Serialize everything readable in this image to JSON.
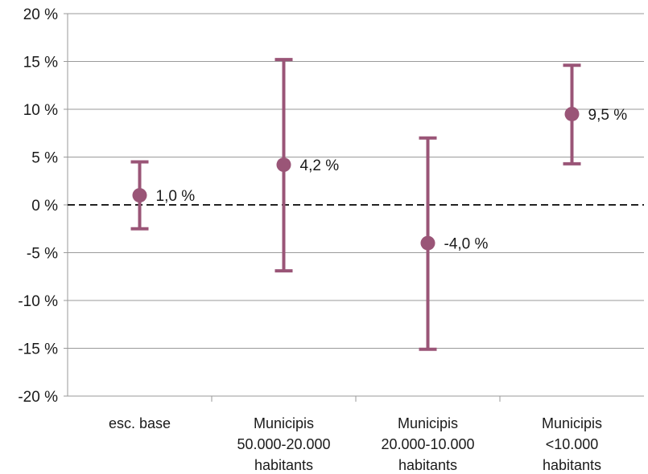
{
  "chart_data": {
    "type": "scatter",
    "ylim": [
      -20,
      20
    ],
    "y_ticks": [
      -20,
      -15,
      -10,
      -5,
      0,
      5,
      10,
      15,
      20
    ],
    "y_tick_labels": [
      "-20 %",
      "-15 %",
      "-10 %",
      "-5 %",
      "0 %",
      "5 %",
      "10 %",
      "15 %",
      "20 %"
    ],
    "grid": true,
    "reference_line": 0,
    "marker_color": "#9a5577",
    "categories": [
      [
        "esc. base"
      ],
      [
        "Municipis",
        "50.000-20.000",
        "habitants"
      ],
      [
        "Municipis",
        "20.000-10.000",
        "habitants"
      ],
      [
        "Municipis",
        "<10.000",
        "habitants"
      ]
    ],
    "values": [
      1.0,
      4.2,
      -4.0,
      9.5
    ],
    "upper": [
      4.5,
      15.2,
      7.0,
      14.6
    ],
    "lower": [
      -2.5,
      -6.9,
      -15.1,
      4.3
    ],
    "data_labels": [
      "1,0 %",
      "4,2 %",
      "-4,0 %",
      "9,5 %"
    ]
  }
}
